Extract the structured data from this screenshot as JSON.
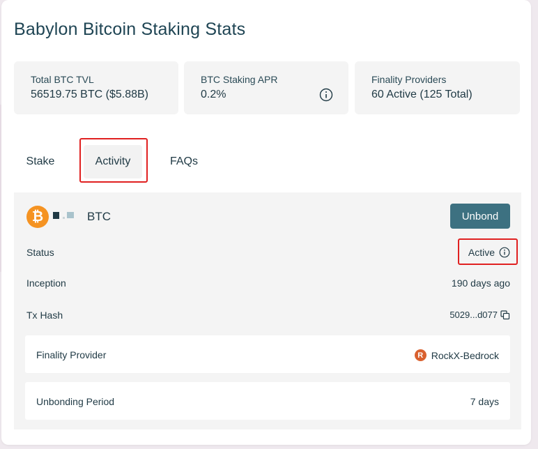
{
  "page": {
    "title": "Babylon Bitcoin Staking Stats"
  },
  "stats": {
    "tvl": {
      "label": "Total BTC TVL",
      "value": "56519.75 BTC ($5.88B)"
    },
    "apr": {
      "label": "BTC Staking APR",
      "value": "0.2%",
      "icon": "info-icon"
    },
    "providers": {
      "label": "Finality Providers",
      "value": "60 Active (125 Total)"
    }
  },
  "tabs": [
    {
      "label": "Stake"
    },
    {
      "label": "Activity",
      "selected": true
    },
    {
      "label": "FAQs"
    }
  ],
  "activity": {
    "asset_icon": "bitcoin-icon",
    "asset_label": "BTC",
    "unbond_label": "Unbond",
    "status_label": "Status",
    "status_value": "Active",
    "inception_label": "Inception",
    "inception_value": "190 days ago",
    "tx_hash_label": "Tx Hash",
    "tx_hash_value": "5029...d077",
    "finality_provider_label": "Finality Provider",
    "finality_provider_value": "RockX-Bedrock",
    "finality_provider_icon_letter": "R",
    "unbonding_period_label": "Unbonding Period",
    "unbonding_period_value": "7 days"
  },
  "colors": {
    "accent": "#3d7181",
    "text_dark": "#1f3944",
    "bitcoin": "#f59322",
    "highlight": "#e02020",
    "provider_icon": "#d9612f"
  }
}
